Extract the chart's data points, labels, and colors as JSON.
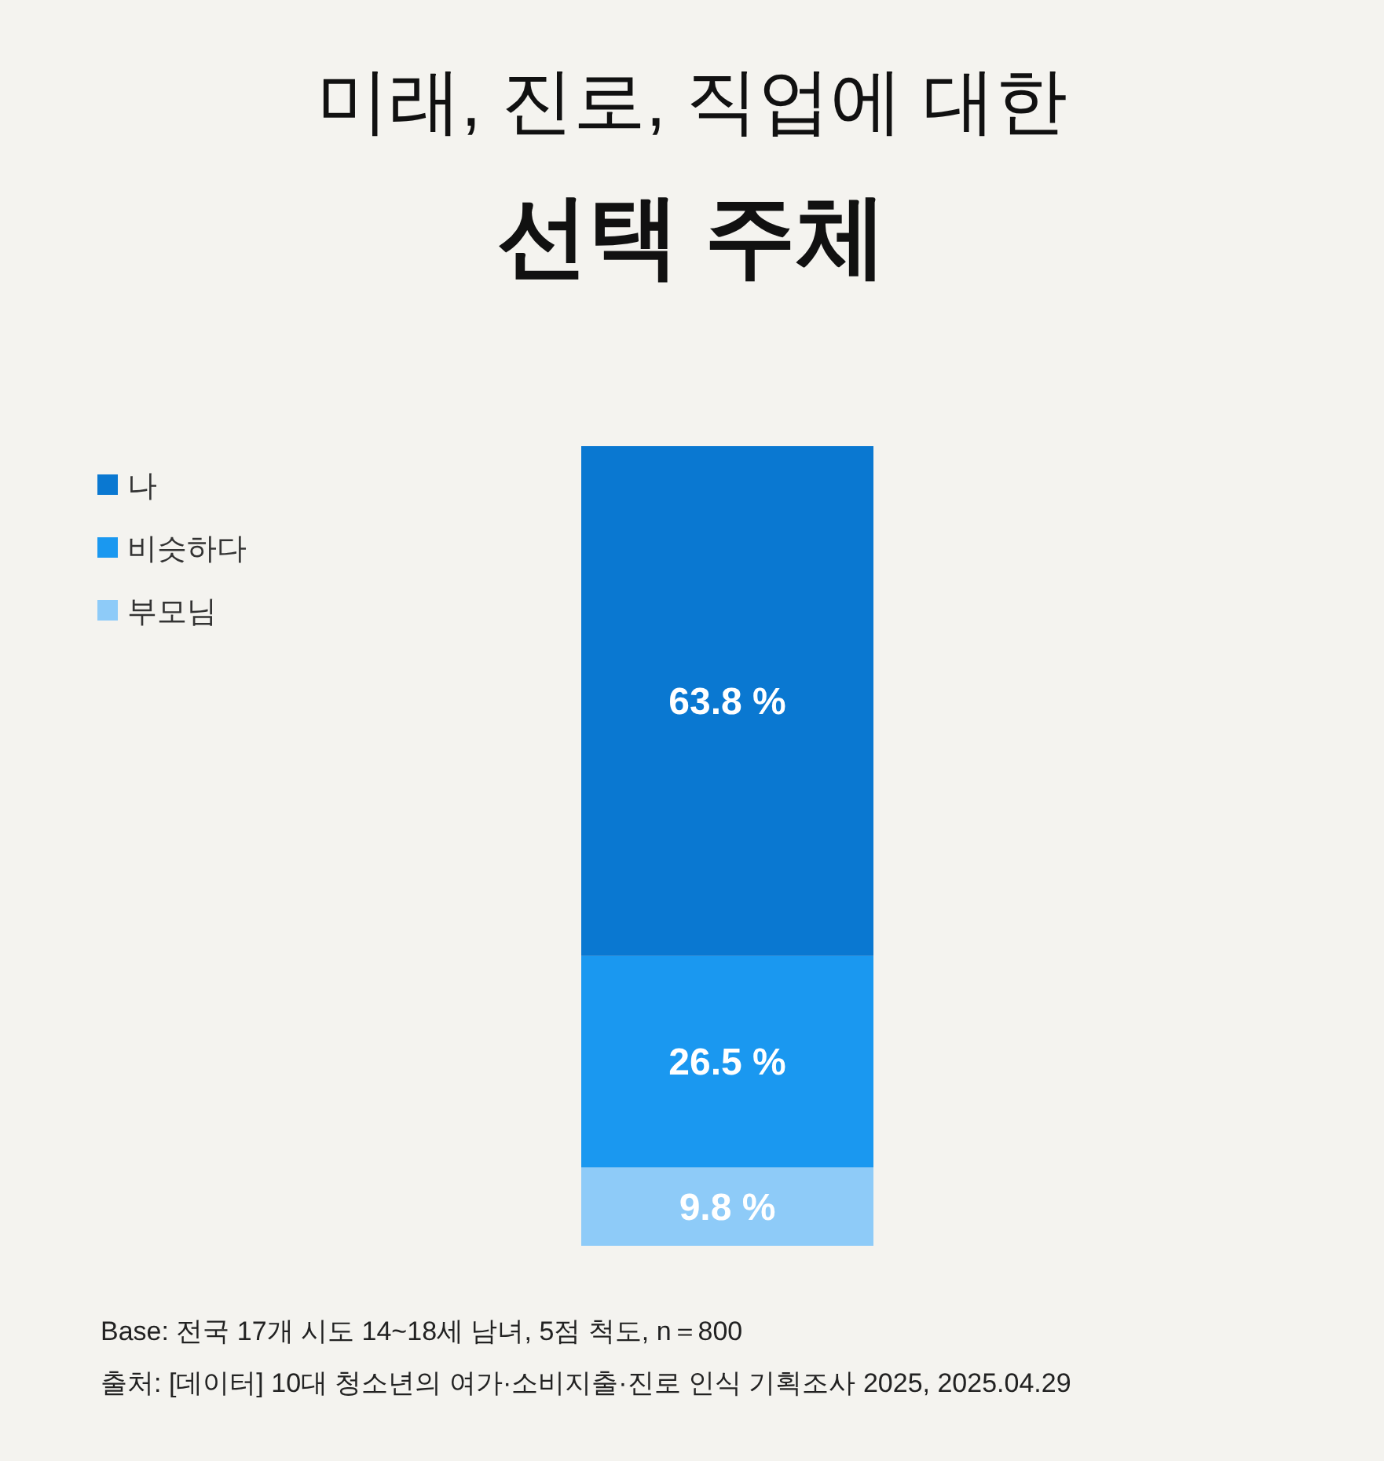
{
  "chart_data": {
    "type": "bar",
    "stacked": true,
    "title": "미래, 진로, 직업에 대한",
    "subtitle": "선택 주체",
    "categories": [
      null
    ],
    "legend": "top left",
    "series": [
      {
        "name": "부모님",
        "color": "#8ecbf8",
        "values": [
          9.8
        ],
        "value_labels": [
          "9.8 %"
        ]
      },
      {
        "name": "비슷하다",
        "color": "#1a98f0",
        "values": [
          26.5
        ],
        "value_labels": [
          "26.5 %"
        ]
      },
      {
        "name": "나",
        "color": "#0a78d1",
        "values": [
          63.8
        ],
        "value_labels": [
          "63.8 %"
        ]
      }
    ],
    "annotations": [
      "Base: 전국 17개 시도 14~18세 남녀, 5점 척도, n＝800",
      "출처: [데이터] 10대 청소년의 여가·소비지출·진로 인식 기획조사 2025, 2025.04.29"
    ]
  }
}
